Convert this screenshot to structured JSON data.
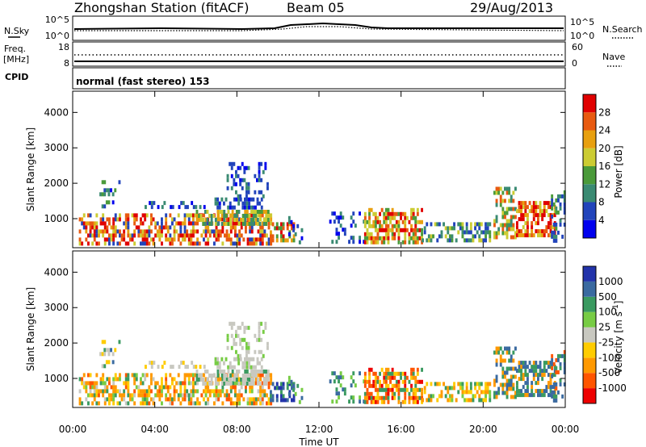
{
  "header": {
    "station_label": "Zhongshan Station (fitACF)",
    "beam_label": "Beam 05",
    "date_label": "29/Aug/2013"
  },
  "top_panels": {
    "nsky": {
      "left_label": "N.Sky",
      "left_ticks": [
        "10^5",
        "10^0"
      ],
      "right_ticks": [
        "10^5",
        "10^0"
      ],
      "right_label": "N.Search"
    },
    "freq": {
      "left_label": "Freq.",
      "left_unit": "[MHz]",
      "left_ticks": [
        "18",
        "8"
      ],
      "right_ticks": [
        "60",
        "0"
      ],
      "right_label": "Nave"
    },
    "cpid": {
      "left_label": "CPID",
      "value": "normal (fast stereo) 153"
    }
  },
  "chart_data": [
    {
      "type": "heatmap",
      "title": "",
      "xlabel": "Time UT",
      "ylabel": "Slant Range [km]",
      "x_ticks": [
        "00:00",
        "04:00",
        "08:00",
        "12:00",
        "16:00",
        "20:00",
        "00:00"
      ],
      "x_range_hours": [
        0,
        24
      ],
      "ylim": [
        180,
        4600
      ],
      "y_ticks": [
        1000,
        2000,
        3000,
        4000
      ],
      "colorbar": {
        "label": "Power [dB]",
        "ticks": [
          "4",
          "8",
          "12",
          "16",
          "20",
          "24",
          "28"
        ],
        "colors": [
          "#0000ee",
          "#2244bb",
          "#3a8a72",
          "#4a9a3a",
          "#cccc33",
          "#e8a010",
          "#e85a10",
          "#e00000"
        ]
      }
    },
    {
      "type": "heatmap",
      "title": "",
      "xlabel": "Time UT",
      "ylabel": "Slant Range [km]",
      "x_ticks": [
        "00:00",
        "04:00",
        "08:00",
        "12:00",
        "16:00",
        "20:00",
        "00:00"
      ],
      "x_range_hours": [
        0,
        24
      ],
      "ylim": [
        180,
        4600
      ],
      "y_ticks": [
        1000,
        2000,
        3000,
        4000
      ],
      "colorbar": {
        "label": "Velocity [m s^-1]",
        "ticks": [
          "1000",
          "500",
          "100",
          "25",
          "-25",
          "-100",
          "-500",
          "-1000"
        ],
        "colors": [
          "#2233aa",
          "#3a6aa0",
          "#3a9a60",
          "#77cc44",
          "#c8c8c0",
          "#ffcc00",
          "#ff9900",
          "#ff5500",
          "#ee0000"
        ]
      }
    }
  ]
}
